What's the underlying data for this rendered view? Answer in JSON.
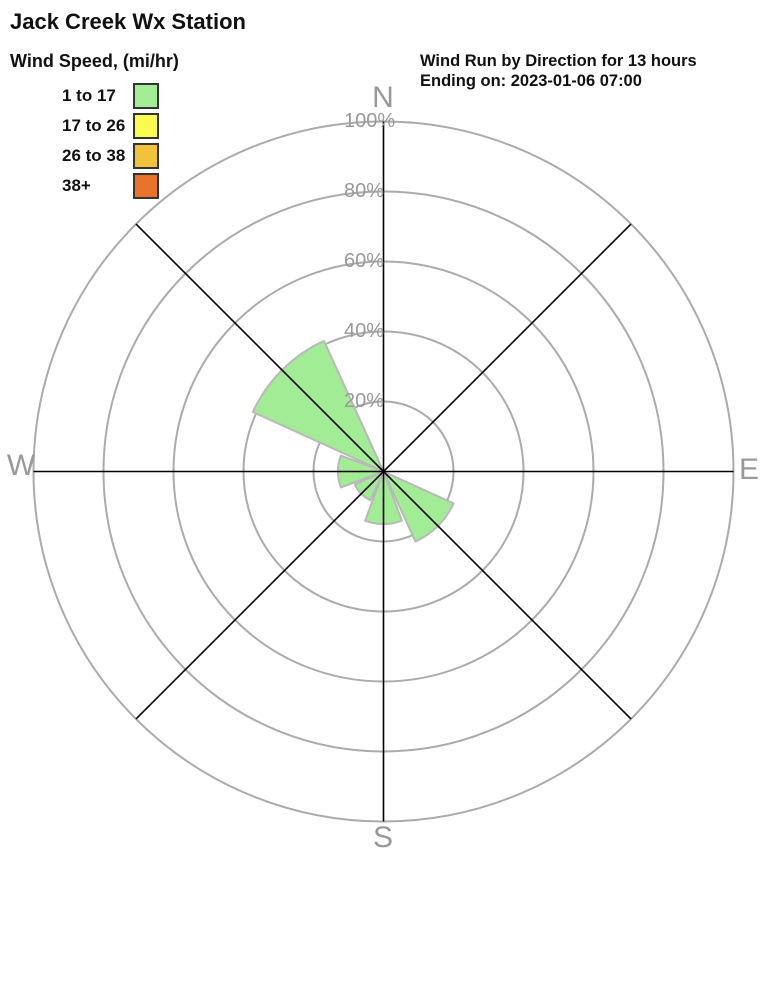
{
  "title": "Jack Creek Wx Station",
  "legend": {
    "title": "Wind Speed, (mi/hr)",
    "items": [
      {
        "label": "1 to 17",
        "color": "#A3EC96"
      },
      {
        "label": "17 to 26",
        "color": "#FBFB4F"
      },
      {
        "label": "26 to 38",
        "color": "#F1C33C"
      },
      {
        "label": "38+",
        "color": "#E8722A"
      }
    ]
  },
  "chart_data": {
    "type": "windrose-polar-bar",
    "title": "Wind Run by Direction for 13 hours",
    "subtitle": "Ending on: 2023-01-06 07:00",
    "units": "percent of total wind run",
    "sectors": [
      "N",
      "NE",
      "E",
      "SE",
      "S",
      "SW",
      "W",
      "NW"
    ],
    "series": [
      {
        "name": "1 to 17",
        "color": "#A3EC96",
        "values": [
          0,
          0,
          0,
          22,
          15,
          9,
          13,
          41
        ]
      },
      {
        "name": "17 to 26",
        "color": "#FBFB4F",
        "values": [
          0,
          0,
          0,
          0,
          0,
          0,
          0,
          0
        ]
      },
      {
        "name": "26 to 38",
        "color": "#F1C33C",
        "values": [
          0,
          0,
          0,
          0,
          0,
          0,
          0,
          0
        ]
      },
      {
        "name": "38+",
        "color": "#E8722A",
        "values": [
          0,
          0,
          0,
          0,
          0,
          0,
          0,
          0
        ]
      }
    ],
    "ring_ticks": [
      "100%",
      "80%",
      "60%",
      "40%",
      "20%"
    ],
    "ring_values": [
      20,
      40,
      60,
      80,
      100
    ],
    "rlim": [
      0,
      100
    ],
    "grid": true,
    "legend_position": "top-left",
    "compass": {
      "n": "N",
      "e": "E",
      "s": "S",
      "w": "W"
    },
    "colors": {
      "ring": "#ABABAB",
      "axis": "#000000",
      "wedge_outline": "#B9B9B9",
      "label_gray": "#999999"
    }
  }
}
